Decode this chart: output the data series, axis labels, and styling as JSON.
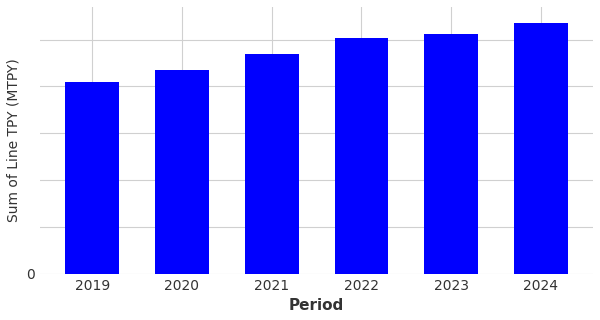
{
  "categories": [
    "2019",
    "2020",
    "2021",
    "2022",
    "2023",
    "2024"
  ],
  "values": [
    20.5,
    21.8,
    23.5,
    25.2,
    25.6,
    26.8
  ],
  "bar_color": "#0000FF",
  "xlabel": "Period",
  "ylabel": "Sum of Line TPY (MTPY)",
  "xlabel_fontsize": 11,
  "ylabel_fontsize": 10,
  "tick_fontsize": 10,
  "bar_width": 0.6,
  "ylim": [
    0,
    28.5
  ],
  "grid_color": "#d0d0d0",
  "background_color": "#ffffff",
  "zero_label_fontsize": 10,
  "xlabel_fontweight": "bold"
}
